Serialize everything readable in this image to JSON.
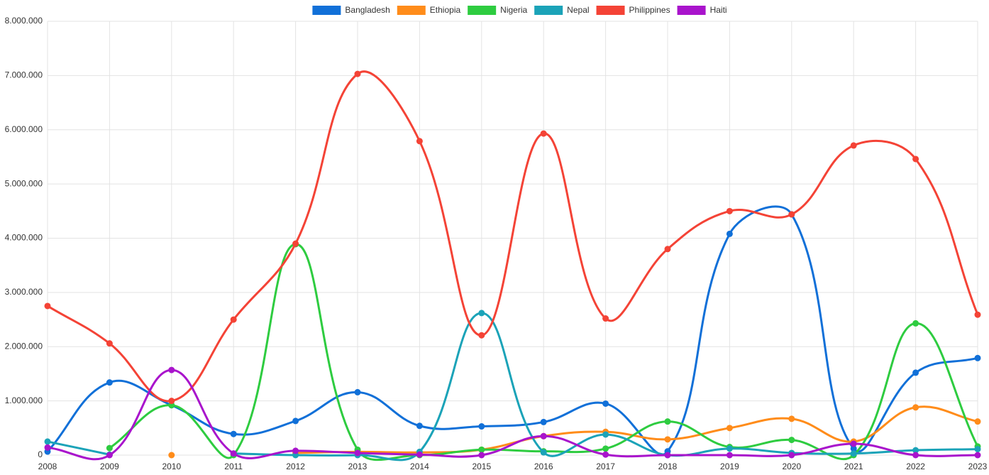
{
  "chart_data": {
    "type": "line",
    "categories": [
      "2008",
      "2009",
      "2010",
      "2011",
      "2012",
      "2013",
      "2014",
      "2015",
      "2016",
      "2017",
      "2018",
      "2019",
      "2020",
      "2021",
      "2022",
      "2023"
    ],
    "ylim": [
      0,
      8000000
    ],
    "yticks": [
      {
        "value": 0,
        "label": "0"
      },
      {
        "value": 1000000,
        "label": "1.000.000"
      },
      {
        "value": 2000000,
        "label": "2.000.000"
      },
      {
        "value": 3000000,
        "label": "3.000.000"
      },
      {
        "value": 4000000,
        "label": "4.000.000"
      },
      {
        "value": 5000000,
        "label": "5.000.000"
      },
      {
        "value": 6000000,
        "label": "6.000.000"
      },
      {
        "value": 7000000,
        "label": "7.000.000"
      },
      {
        "value": 8000000,
        "label": "8.000.000"
      }
    ],
    "grid": true,
    "legend": "top",
    "series": [
      {
        "name": "Bangladesh",
        "color": "#1170d8",
        "values": [
          65000,
          1340000,
          920000,
          390000,
          630000,
          1160000,
          540000,
          530000,
          610000,
          950000,
          70000,
          4080000,
          4440000,
          120000,
          1520000,
          1790000
        ]
      },
      {
        "name": "Ethiopia",
        "color": "#ff8c1a",
        "values": [
          null,
          null,
          0,
          null,
          40000,
          60000,
          50000,
          100000,
          350000,
          430000,
          290000,
          500000,
          670000,
          250000,
          880000,
          620000
        ]
      },
      {
        "name": "Nigeria",
        "color": "#2ecc40",
        "values": [
          null,
          130000,
          920000,
          0,
          3890000,
          100000,
          0,
          100000,
          70000,
          120000,
          620000,
          150000,
          280000,
          0,
          2430000,
          160000
        ]
      },
      {
        "name": "Nepal",
        "color": "#1ba3b8",
        "values": [
          250000,
          10000,
          null,
          30000,
          0,
          0,
          60000,
          2620000,
          50000,
          380000,
          0,
          120000,
          40000,
          30000,
          90000,
          110000
        ]
      },
      {
        "name": "Philippines",
        "color": "#f44336",
        "values": [
          2750000,
          2060000,
          1000000,
          2500000,
          3900000,
          7030000,
          5790000,
          2210000,
          5930000,
          2520000,
          3800000,
          4500000,
          4440000,
          5710000,
          5460000,
          2590000
        ]
      },
      {
        "name": "Haiti",
        "color": "#a914cc",
        "values": [
          140000,
          0,
          1570000,
          30000,
          80000,
          40000,
          10000,
          0,
          350000,
          10000,
          0,
          0,
          0,
          210000,
          0,
          0
        ]
      }
    ]
  }
}
